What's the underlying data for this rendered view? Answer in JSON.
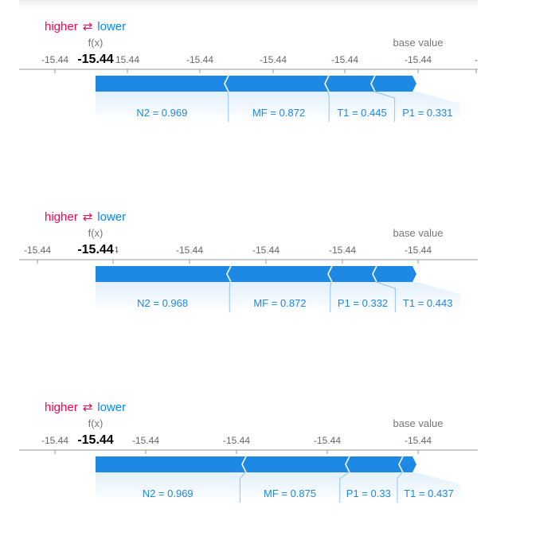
{
  "colors": {
    "positive": "#ff0051",
    "negative": "#008bfb",
    "bar": "#1e88e5",
    "label": "#1e88e5",
    "axis": "#999999",
    "tick_text": "#666666"
  },
  "legend": {
    "higher": "higher",
    "arrow": "⇄",
    "lower": "lower"
  },
  "labels": {
    "fx": "f(x)",
    "base_value": "base value"
  },
  "chart_data": [
    {
      "type": "bar",
      "fx": "-15.44",
      "base_value_label": "-15.44",
      "ticks": [
        {
          "label": "-15.44",
          "px": 69
        },
        {
          "label": "15.44",
          "px": 160,
          "behind_fx": true
        },
        {
          "label": "-15.44",
          "px": 251
        },
        {
          "label": "-15.44",
          "px": 343
        },
        {
          "label": "-15.44",
          "px": 433
        },
        {
          "label": "-15.44",
          "px": 525
        },
        {
          "label": "-",
          "px": 598
        }
      ],
      "features": [
        {
          "label": "N2 = 0.969",
          "value": 0.969,
          "start": 120,
          "end": 286
        },
        {
          "label": "MF = 0.872",
          "value": 0.872,
          "start": 286,
          "end": 412
        },
        {
          "label": "T1 = 0.445",
          "value": 0.445,
          "start": 412,
          "end": 470
        },
        {
          "label": "P1 = 0.331",
          "value": 0.331,
          "start": 470,
          "end": 523
        }
      ]
    },
    {
      "type": "bar",
      "fx": "-15.44",
      "base_value_label": "-15.44",
      "ticks": [
        {
          "label": "-15.44",
          "px": 47
        },
        {
          "label": "44",
          "px": 142,
          "behind_fx": true
        },
        {
          "label": "-15.44",
          "px": 238
        },
        {
          "label": "-15.44",
          "px": 334
        },
        {
          "label": "-15.44",
          "px": 430
        },
        {
          "label": "-15.44",
          "px": 525
        }
      ],
      "features": [
        {
          "label": "N2 = 0.968",
          "value": 0.968,
          "start": 120,
          "end": 289
        },
        {
          "label": "MF = 0.872",
          "value": 0.872,
          "start": 289,
          "end": 416
        },
        {
          "label": "P1 = 0.332",
          "value": 0.332,
          "start": 416,
          "end": 472
        },
        {
          "label": "T1 = 0.443",
          "value": 0.443,
          "start": 472,
          "end": 523
        }
      ]
    },
    {
      "type": "bar",
      "fx": "-15.44",
      "base_value_label": "-15.44",
      "ticks": [
        {
          "label": "-15.44",
          "px": 69
        },
        {
          "label": "-15.44",
          "px": 183
        },
        {
          "label": "-15.44",
          "px": 297
        },
        {
          "label": "-15.44",
          "px": 411
        },
        {
          "label": "-15.44",
          "px": 525
        }
      ],
      "features": [
        {
          "label": "N2 = 0.969",
          "value": 0.969,
          "start": 120,
          "end": 308
        },
        {
          "label": "MF = 0.875",
          "value": 0.875,
          "start": 308,
          "end": 438
        },
        {
          "label": "P1 = 0.33",
          "value": 0.33,
          "start": 438,
          "end": 505
        },
        {
          "label": "T1 = 0.437",
          "value": 0.437,
          "start": 505,
          "end": 523
        }
      ]
    }
  ]
}
